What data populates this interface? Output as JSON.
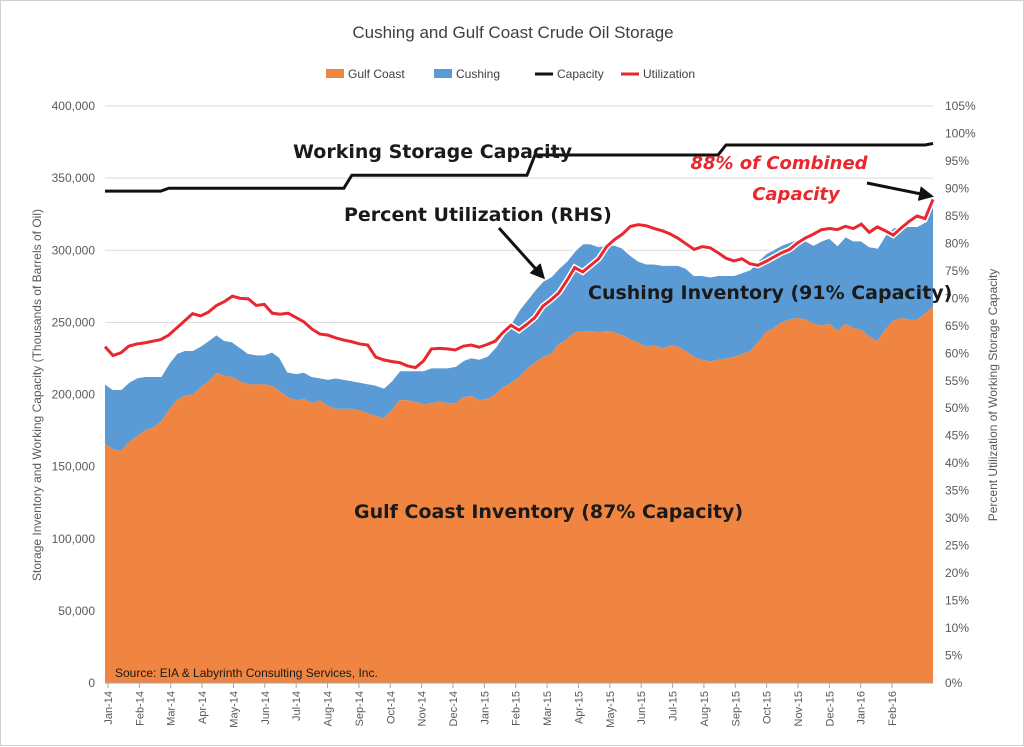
{
  "chart_data": {
    "type": "area",
    "title": "Cushing  and Gulf Coast Crude Oil Storage",
    "ylabel": "Storage Inventory  and Working Capacity (Thousands of Barrels of Oil)",
    "y2label": "Percent  Utilization  of Working Storage Capacity",
    "ylim": [
      0,
      400000
    ],
    "y2lim": [
      0,
      105
    ],
    "y_ticks": [
      "0",
      "50,000",
      "100,000",
      "150,000",
      "200,000",
      "250,000",
      "300,000",
      "350,000",
      "400,000"
    ],
    "y2_ticks": [
      "0%",
      "5%",
      "10%",
      "15%",
      "20%",
      "25%",
      "30%",
      "35%",
      "40%",
      "45%",
      "50%",
      "55%",
      "60%",
      "65%",
      "70%",
      "75%",
      "80%",
      "85%",
      "90%",
      "95%",
      "100%",
      "105%"
    ],
    "x_ticks": [
      "Jan-14",
      "Feb-14",
      "Mar-14",
      "Apr-14",
      "May-14",
      "Jun-14",
      "Jul-14",
      "Aug-14",
      "Sep-14",
      "Oct-14",
      "Nov-14",
      "Dec-14",
      "Jan-15",
      "Feb-15",
      "Mar-15",
      "Apr-15",
      "May-15",
      "Jun-15",
      "Jul-15",
      "Aug-15",
      "Sep-15",
      "Oct-15",
      "Nov-15",
      "Dec-15",
      "Jan-16",
      "Feb-16"
    ],
    "grid": true,
    "legend_position": "top",
    "legend": [
      {
        "name": "Gulf Coast",
        "color": "#ef8541",
        "shape": "box"
      },
      {
        "name": "Cushing",
        "color": "#5b9bd5",
        "shape": "box"
      },
      {
        "name": "Capacity",
        "color": "#111111",
        "shape": "line"
      },
      {
        "name": "Utilization",
        "color": "#e8282e",
        "shape": "line"
      }
    ],
    "series": [
      {
        "name": "Gulf Coast",
        "axis": "left",
        "values": [
          166000,
          162000,
          161000,
          167000,
          171000,
          175000,
          177000,
          181000,
          189000,
          196000,
          199000,
          200000,
          205000,
          209000,
          215000,
          213000,
          212000,
          209000,
          207000,
          207000,
          207000,
          206000,
          202000,
          198000,
          196000,
          197000,
          194000,
          196000,
          192000,
          190000,
          190000,
          190000,
          189000,
          187000,
          185000,
          184000,
          189000,
          196000,
          196000,
          195000,
          193000,
          194000,
          195000,
          194000,
          194000,
          198000,
          199000,
          196000,
          197000,
          200000,
          205000,
          208000,
          212000,
          218000,
          222000,
          226000,
          228000,
          235000,
          238000,
          243000,
          244000,
          244000,
          243000,
          244000,
          243000,
          241000,
          238000,
          236000,
          233000,
          234000,
          232000,
          234000,
          233000,
          230000,
          226000,
          224000,
          223000,
          224000,
          225000,
          226000,
          228000,
          230000,
          236000,
          243000,
          246000,
          250000,
          252000,
          253000,
          252000,
          249000,
          248000,
          249000,
          244000,
          249000,
          246000,
          245000,
          240000,
          237000,
          245000,
          251000,
          253000,
          252000,
          252000,
          256000,
          261000
        ]
      },
      {
        "name": "Cushing",
        "axis": "left",
        "values": [
          42000,
          42000,
          43000,
          42000,
          41000,
          38000,
          36000,
          32000,
          33000,
          33000,
          32000,
          31000,
          29000,
          29000,
          27000,
          25000,
          25000,
          24000,
          22000,
          21000,
          21000,
          24000,
          24000,
          18000,
          19000,
          19000,
          19000,
          16000,
          19000,
          22000,
          21000,
          20000,
          20000,
          21000,
          22000,
          21000,
          21000,
          21000,
          21000,
          22000,
          24000,
          25000,
          24000,
          25000,
          26000,
          26000,
          27000,
          29000,
          30000,
          33000,
          36000,
          42000,
          47000,
          48000,
          51000,
          53000,
          54000,
          53000,
          55000,
          57000,
          61000,
          61000,
          60000,
          60000,
          61000,
          61000,
          59000,
          57000,
          58000,
          57000,
          58000,
          56000,
          57000,
          58000,
          57000,
          59000,
          59000,
          59000,
          58000,
          57000,
          57000,
          57000,
          57000,
          55000,
          55000,
          54000,
          54000,
          55000,
          55000,
          55000,
          59000,
          60000,
          60000,
          61000,
          61000,
          62000,
          63000,
          65000,
          66000,
          65000,
          64000,
          65000,
          65000,
          64000,
          72000
        ]
      },
      {
        "name": "Capacity",
        "axis": "left",
        "values": [
          341000,
          341000,
          341000,
          341000,
          341000,
          341000,
          341000,
          341000,
          343000,
          343000,
          343000,
          343000,
          343000,
          343000,
          343000,
          343000,
          343000,
          343000,
          343000,
          343000,
          343000,
          343000,
          343000,
          343000,
          343000,
          343000,
          343000,
          343000,
          343000,
          343000,
          343000,
          352000,
          352000,
          352000,
          352000,
          352000,
          352000,
          352000,
          352000,
          352000,
          352000,
          352000,
          352000,
          352000,
          352000,
          352000,
          352000,
          352000,
          352000,
          352000,
          352000,
          352000,
          352000,
          352000,
          366000,
          366000,
          366000,
          366000,
          366000,
          366000,
          366000,
          366000,
          366000,
          366000,
          366000,
          366000,
          366000,
          366000,
          366000,
          366000,
          366000,
          366000,
          366000,
          366000,
          366000,
          366000,
          366000,
          366000,
          373000,
          373000,
          373000,
          373000,
          373000,
          373000,
          373000,
          373000,
          373000,
          373000,
          373000,
          373000,
          373000,
          373000,
          373000,
          373000,
          373000,
          373000,
          373000,
          373000,
          373000,
          373000,
          373000,
          373000,
          373000,
          373000,
          374000
        ]
      },
      {
        "name": "Utilization",
        "axis": "right",
        "values": [
          61.2,
          59.6,
          60.1,
          61.3,
          61.7,
          61.9,
          62.2,
          62.5,
          63.3,
          64.6,
          65.9,
          67.2,
          66.8,
          67.5,
          68.7,
          69.4,
          70.4,
          70.0,
          69.9,
          68.7,
          68.9,
          67.3,
          67.1,
          67.3,
          66.5,
          65.7,
          64.4,
          63.5,
          63.3,
          62.8,
          62.4,
          62.1,
          61.7,
          61.5,
          59.3,
          58.8,
          58.5,
          58.3,
          57.7,
          57.4,
          58.6,
          60.8,
          60.9,
          60.8,
          60.6,
          61.3,
          61.5,
          61.1,
          61.6,
          62.2,
          63.8,
          65.1,
          64.2,
          65.3,
          66.5,
          68.6,
          69.7,
          71.0,
          73.2,
          75.6,
          74.8,
          76.0,
          77.2,
          79.4,
          80.7,
          81.7,
          83.1,
          83.4,
          83.2,
          82.7,
          82.3,
          81.7,
          80.9,
          79.9,
          78.9,
          79.4,
          79.2,
          78.3,
          77.3,
          76.8,
          77.2,
          76.3,
          76.0,
          76.7,
          77.5,
          78.3,
          78.9,
          80.1,
          81.0,
          81.7,
          82.5,
          82.7,
          82.5,
          83.1,
          82.7,
          83.5,
          82.0,
          83.0,
          82.3,
          81.5,
          82.8,
          84.0,
          85.0,
          84.5,
          88.0
        ]
      }
    ],
    "annotations": [
      {
        "text": "Working Storage Capacity"
      },
      {
        "text": "Percent Utilization (RHS)"
      },
      {
        "text": "88% of Combined"
      },
      {
        "text": "Capacity"
      },
      {
        "text": "Cushing Inventory (91% Capacity)"
      },
      {
        "text": "Gulf Coast Inventory (87% Capacity)"
      }
    ],
    "source": "Source:  EIA & Labyrinth Consulting Services, Inc."
  }
}
